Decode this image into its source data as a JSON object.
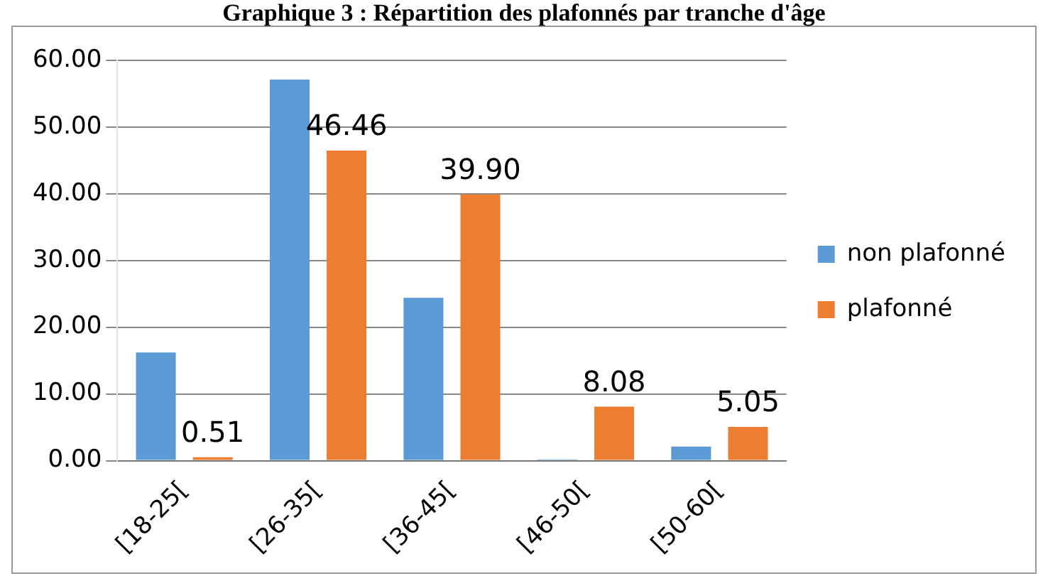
{
  "chart_data": {
    "type": "bar",
    "title": "Graphique 3 : Répartition des plafonnés par tranche d'âge",
    "categories": [
      "[18-25[",
      "[26-35[",
      "[36-45[",
      "[46-50[",
      "[50-60["
    ],
    "series": [
      {
        "name": "non plafonné",
        "color": "#5b9bd5",
        "values": [
          16.2,
          57.1,
          24.4,
          0.2,
          2.1
        ]
      },
      {
        "name": "plafonné",
        "color": "#ed7d31",
        "values": [
          0.51,
          46.46,
          39.9,
          8.08,
          5.05
        ],
        "value_labels": [
          "0.51",
          "46.46",
          "39.90",
          "8.08",
          "5.05"
        ]
      }
    ],
    "ylim": [
      0,
      60
    ],
    "yticks": [
      {
        "value": 0,
        "label": "0.00"
      },
      {
        "value": 10,
        "label": "10.00"
      },
      {
        "value": 20,
        "label": "20.00"
      },
      {
        "value": 30,
        "label": "30.00"
      },
      {
        "value": 40,
        "label": "40.00"
      },
      {
        "value": 50,
        "label": "50.00"
      },
      {
        "value": 60,
        "label": "60.00"
      }
    ],
    "grid": "y",
    "legend": "right"
  }
}
